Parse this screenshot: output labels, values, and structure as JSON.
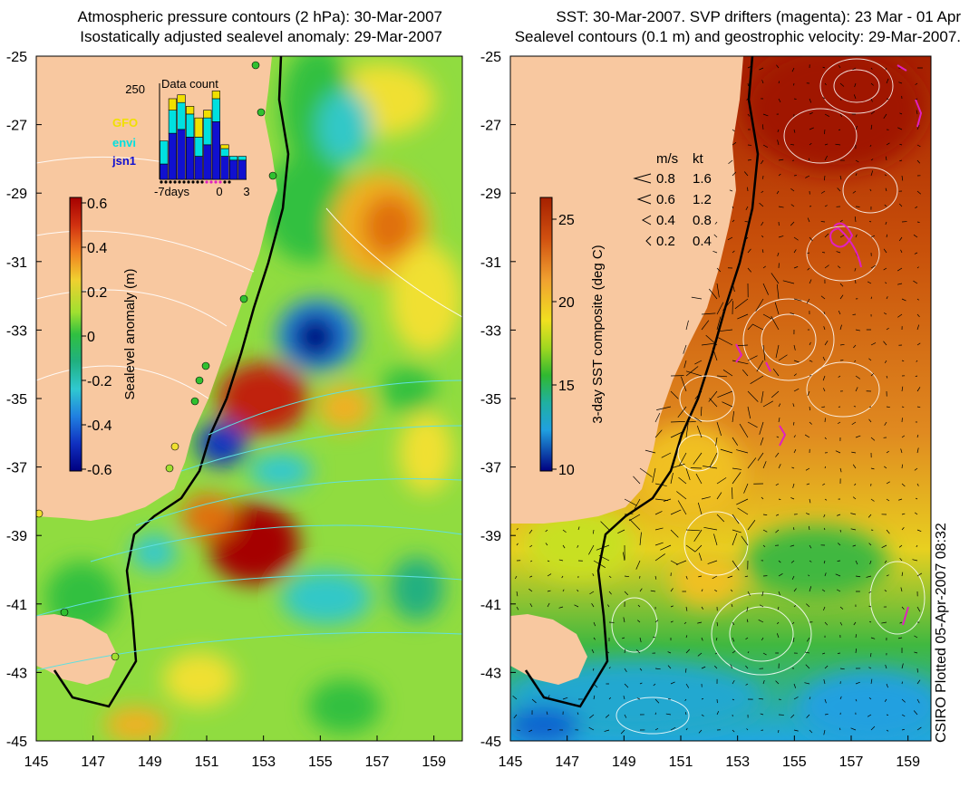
{
  "left_panel": {
    "title_line1": "Atmospheric pressure contours (2 hPa): 30-Mar-2007",
    "title_line2": "Isostatically adjusted sealevel anomaly: 29-Mar-2007",
    "colorbar": {
      "label": "Sealevel anomaly (m)",
      "ticks": [
        "0.6",
        "0.4",
        "0.2",
        "0",
        "-0.2",
        "-0.4",
        "-0.6"
      ],
      "colors": [
        "#a50000",
        "#d03010",
        "#e07010",
        "#f0a020",
        "#f0e030",
        "#a8e030",
        "#30c030",
        "#20b870",
        "#30c8c8",
        "#2080e0",
        "#1030c0",
        "#000080"
      ]
    },
    "inset": {
      "title": "Data count",
      "ymax_label": "250",
      "legend": [
        "GFO",
        "envi",
        "jsn1"
      ],
      "legend_colors": [
        "#f0e000",
        "#00e0e0",
        "#1010d0"
      ],
      "x_labels": [
        "-7days",
        "0",
        "3"
      ],
      "bars": {
        "jsn1": [
          40,
          120,
          130,
          110,
          60,
          90,
          150,
          60,
          50,
          50
        ],
        "envi": [
          60,
          60,
          70,
          60,
          50,
          70,
          60,
          20,
          10,
          10
        ],
        "GFO": [
          0,
          30,
          20,
          20,
          50,
          20,
          20,
          10,
          0,
          0
        ]
      }
    }
  },
  "right_panel": {
    "title_line1": "SST: 30-Mar-2007. SVP drifters (magenta): 23 Mar - 01 Apr",
    "title_line2": "Sealevel contours (0.1 m) and geostrophic velocity: 29-Mar-2007.",
    "colorbar": {
      "label": "3-day SST composite (deg C)",
      "ticks": [
        "25",
        "20",
        "15",
        "10"
      ],
      "colors": [
        "#a52000",
        "#c84010",
        "#e07020",
        "#f0a030",
        "#f0d020",
        "#d8e020",
        "#80d020",
        "#30b830",
        "#20b090",
        "#20a0e0",
        "#1040c0",
        "#000080"
      ]
    },
    "velocity_legend": {
      "header_ms": "m/s",
      "header_kt": "kt",
      "rows": [
        {
          "ms": "0.8",
          "kt": "1.6"
        },
        {
          "ms": "0.6",
          "kt": "1.2"
        },
        {
          "ms": "0.4",
          "kt": "0.8"
        },
        {
          "ms": "0.2",
          "kt": "0.4"
        }
      ]
    }
  },
  "axes": {
    "y_ticks": [
      "-25",
      "-27",
      "-29",
      "-31",
      "-33",
      "-35",
      "-37",
      "-39",
      "-41",
      "-43",
      "-45"
    ],
    "x_ticks": [
      "145",
      "147",
      "149",
      "151",
      "153",
      "155",
      "157",
      "159"
    ]
  },
  "credit": "CSIRO Plotted 05-Apr-2007 08:32",
  "colors": {
    "land": "#f8c8a0",
    "contour_white": "#ffffff",
    "contour_cyan": "#60e0e0",
    "drifter_magenta": "#e020c0",
    "coast": "#000000"
  }
}
